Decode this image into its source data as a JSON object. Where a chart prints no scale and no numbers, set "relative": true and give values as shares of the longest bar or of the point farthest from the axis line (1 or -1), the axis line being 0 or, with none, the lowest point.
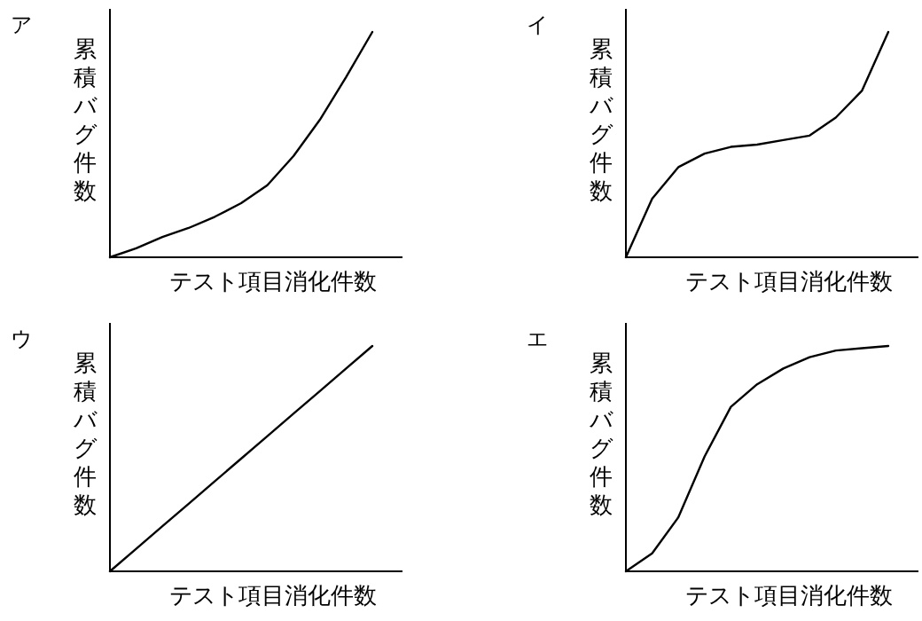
{
  "chart_data": [
    {
      "type": "line",
      "title": "ア",
      "xlabel": "テスト項目消化件数",
      "ylabel": "累積バグ件数",
      "relative": true,
      "color": "#000000",
      "categories": [
        null,
        null,
        null,
        null,
        null,
        null,
        null,
        null,
        null,
        null,
        null
      ],
      "values": [
        0,
        0.04,
        0.09,
        0.13,
        0.18,
        0.24,
        0.32,
        0.45,
        0.61,
        0.8,
        1
      ]
    },
    {
      "type": "line",
      "title": "イ",
      "xlabel": "テスト項目消化件数",
      "ylabel": "累積バグ件数",
      "relative": true,
      "color": "#000000",
      "categories": [
        null,
        null,
        null,
        null,
        null,
        null,
        null,
        null,
        null,
        null,
        null
      ],
      "values": [
        0,
        0.26,
        0.4,
        0.46,
        0.49,
        0.5,
        0.52,
        0.54,
        0.62,
        0.74,
        1
      ]
    },
    {
      "type": "line",
      "title": "ウ",
      "xlabel": "テスト項目消化件数",
      "ylabel": "累積バグ件数",
      "relative": true,
      "color": "#000000",
      "categories": [
        null,
        null,
        null,
        null,
        null,
        null,
        null,
        null,
        null,
        null,
        null
      ],
      "values": [
        0,
        0.1,
        0.2,
        0.3,
        0.4,
        0.5,
        0.6,
        0.7,
        0.8,
        0.9,
        1
      ]
    },
    {
      "type": "line",
      "title": "エ",
      "xlabel": "テスト項目消化件数",
      "ylabel": "累積バグ件数",
      "relative": true,
      "color": "#000000",
      "categories": [
        null,
        null,
        null,
        null,
        null,
        null,
        null,
        null,
        null,
        null,
        null
      ],
      "values": [
        0,
        0.08,
        0.24,
        0.51,
        0.73,
        0.83,
        0.9,
        0.95,
        0.98,
        0.99,
        1
      ]
    }
  ]
}
